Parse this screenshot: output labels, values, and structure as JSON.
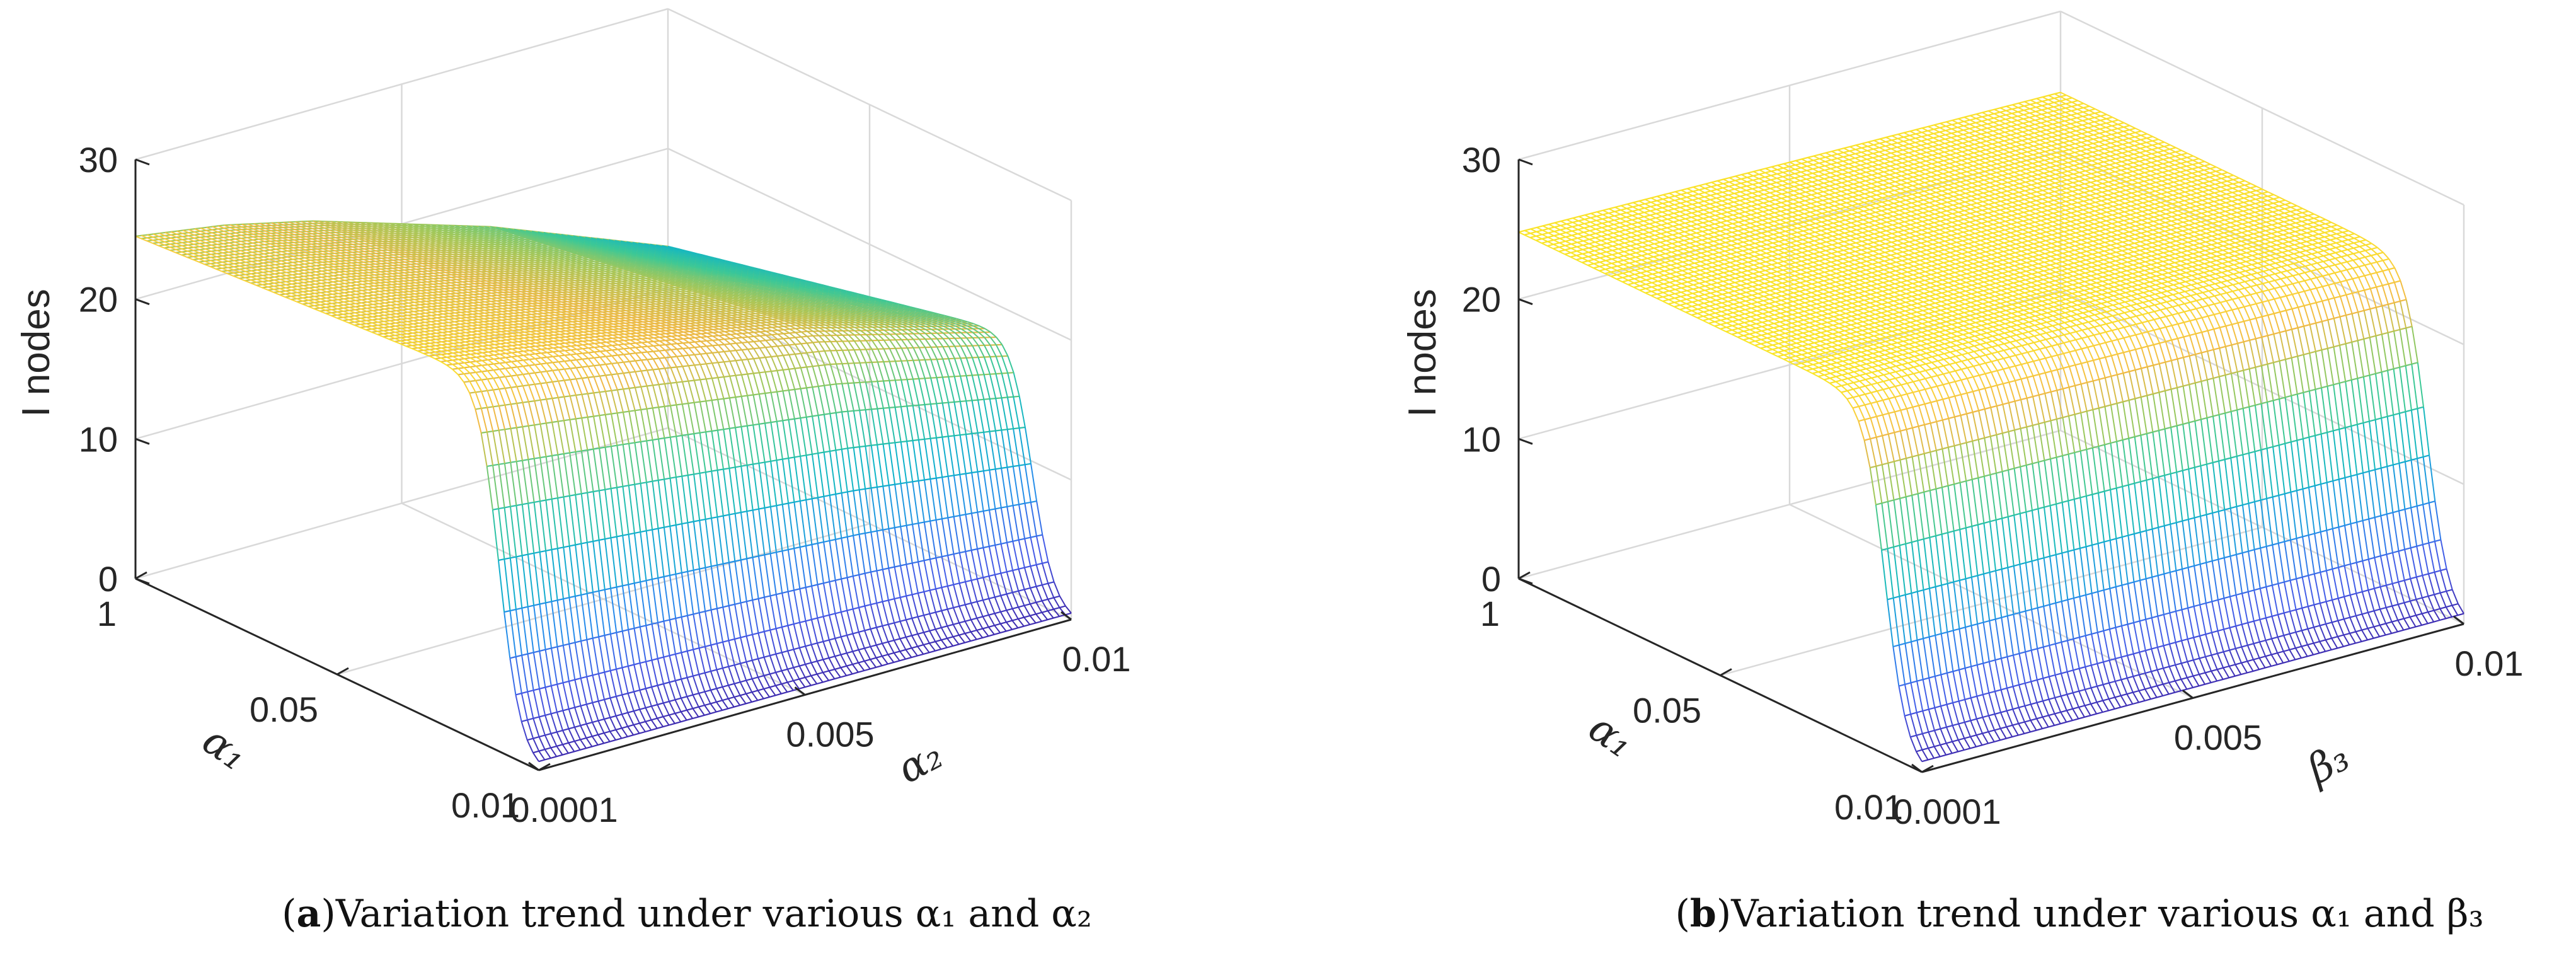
{
  "chart_data": [
    {
      "type": "surface",
      "panel_tag": "a",
      "caption_text": "Variation trend under various α₁ and α₂",
      "zlabel": "I nodes",
      "xlabel": "α₂",
      "ylabel": "α₁",
      "x_ticks": [
        "0.0001",
        "0.005",
        "0.01"
      ],
      "y_ticks": [
        "1",
        "0.05",
        "0.01"
      ],
      "z_ticks": [
        "0",
        "10",
        "20",
        "30"
      ],
      "zlim": [
        0,
        30
      ],
      "surface_profile": {
        "plateau_near_x": [
          24.5,
          23.5,
          22.0,
          20.0,
          18.0,
          15.5,
          13.0
        ],
        "plateau_far_x": [
          26.5,
          25.5,
          24.5,
          23.5,
          22.5,
          21.0,
          19.5
        ],
        "cliff_bottom": 0.0,
        "cliff_onset_y_fraction": 0.72
      }
    },
    {
      "type": "surface",
      "panel_tag": "b",
      "caption_text": "Variation trend under various α₁ and β₃",
      "zlabel": "I nodes",
      "xlabel": "β₃",
      "ylabel": "α₁",
      "x_ticks": [
        "0.0001",
        "0.005",
        "0.01"
      ],
      "y_ticks": [
        "1",
        "0.05",
        "0.01"
      ],
      "z_ticks": [
        "0",
        "10",
        "20",
        "30"
      ],
      "zlim": [
        0,
        30
      ],
      "surface_profile": {
        "plateau_near_x": [
          24.8,
          24.7,
          24.6,
          24.5,
          24.4,
          24.3,
          24.2
        ],
        "plateau_far_x": [
          24.8,
          24.7,
          24.6,
          24.5,
          24.4,
          24.3,
          24.2
        ],
        "cliff_bottom": 0.0,
        "cliff_onset_y_fraction": 0.74
      }
    }
  ]
}
